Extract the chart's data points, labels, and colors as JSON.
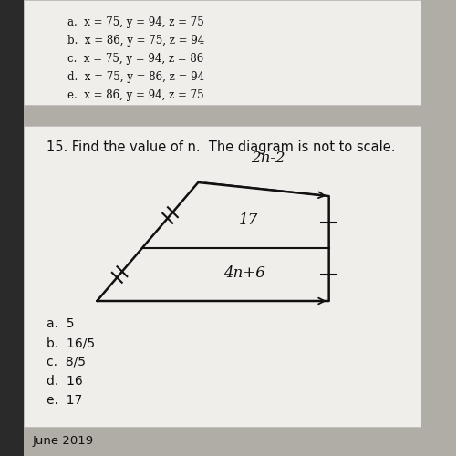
{
  "title": "15. Find the value of n.  The diagram is not to scale.",
  "title_fontsize": 10.5,
  "page_bg": "#b0aca6",
  "card_bg": "#f0eeeb",
  "prev_card_bg": "#f0eeeb",
  "answer_choices": [
    "a.  5",
    "b.  16/5",
    "c.  8/5",
    "d.  16",
    "e.  17"
  ],
  "prev_answers": [
    "a.  x = 75, y = 94, z = 75",
    "b.  x = 86, y = 75, z = 94",
    "c.  x = 75, y = 94, z = 86",
    "d.  x = 75, y = 86, z = 94",
    "e.  x = 86, y = 94, z = 75"
  ],
  "label_top": "2n-2",
  "label_mid": "17",
  "label_bot": "4n+6",
  "footer": "June 2019",
  "text_color": "#111111",
  "left_bar_color": "#2a2a2a",
  "card_edge_color": "#cccccc"
}
